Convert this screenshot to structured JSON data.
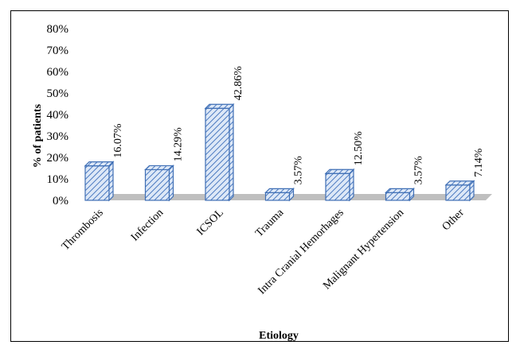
{
  "chart_data": {
    "type": "bar",
    "categories": [
      "Thrombosis",
      "Infection",
      "ICSOL",
      "Trauma",
      "Intra Cranial Hemorhages",
      "Malignant Hypertension",
      "Other"
    ],
    "values": [
      16.07,
      14.29,
      42.86,
      3.57,
      12.5,
      3.57,
      7.14
    ],
    "data_labels": [
      "16.07%",
      "14.29%",
      "42.86%",
      "3.57%",
      "12.50%",
      "3.57%",
      "7.14%"
    ],
    "xlabel": "Etiology",
    "ylabel": "% of patients",
    "ylim": [
      0,
      80
    ],
    "yticks": [
      "0%",
      "10%",
      "20%",
      "30%",
      "40%",
      "50%",
      "60%",
      "70%",
      "80%"
    ],
    "grid": false,
    "legend": "none",
    "style": "3d-column-hatched",
    "colors": {
      "bar_fill": "#dde8f7",
      "bar_stroke": "#3f6fb5",
      "hatch": "#4a79c0",
      "floor": "#bfbfbf"
    }
  }
}
